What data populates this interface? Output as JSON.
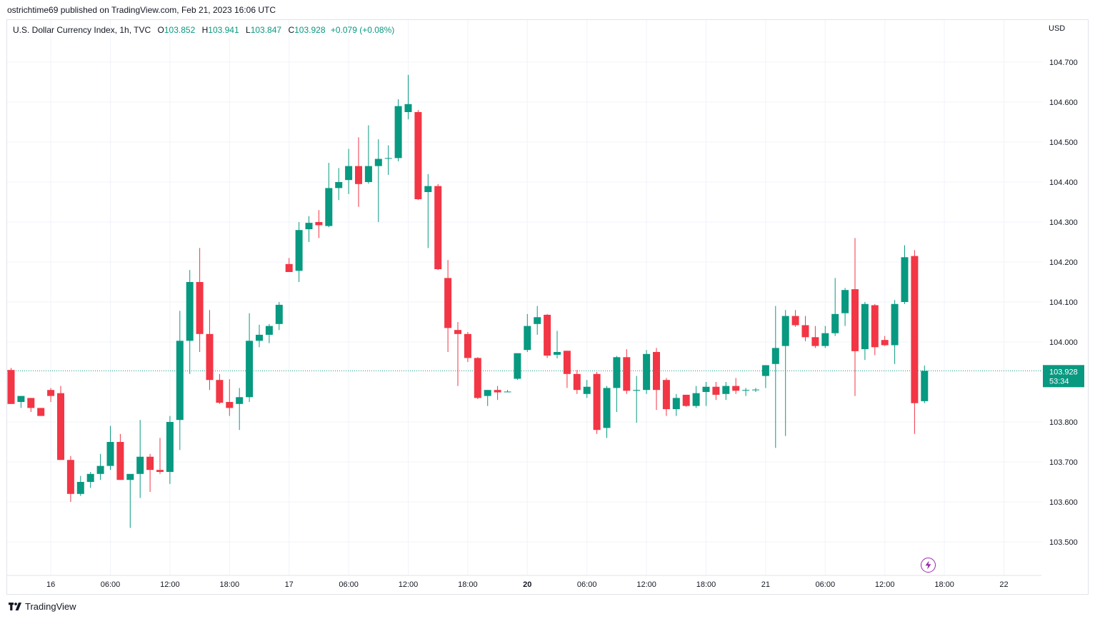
{
  "attribution": {
    "author": "ostrichtime69",
    "text": "published on TradingView.com, Feb 21, 2023 16:06 UTC"
  },
  "legend": {
    "symbol": "U.S. Dollar Currency Index, 1h, TVC",
    "open_label": "O",
    "open": "103.852",
    "high_label": "H",
    "high": "103.941",
    "low_label": "L",
    "low": "103.847",
    "close_label": "C",
    "close": "103.928",
    "change": "+0.079 (+0.08%)"
  },
  "currency": "USD",
  "footer": {
    "brand": "TradingView"
  },
  "colors": {
    "up": "#089981",
    "down": "#f23645",
    "grid": "#f0f3fa",
    "price_line": "#089981",
    "marker": "#9c27b0"
  },
  "icons": {
    "brand": "tradingview-logo-icon",
    "marker": "lightning-icon"
  },
  "chart_data": {
    "type": "candlestick",
    "title": "U.S. Dollar Currency Index, 1h, TVC",
    "ylabel": "USD",
    "ylim": [
      103.43,
      104.79
    ],
    "y_ticks": [
      "104.700",
      "104.600",
      "104.500",
      "104.400",
      "104.300",
      "104.200",
      "104.100",
      "104.000",
      "103.800",
      "103.700",
      "103.600",
      "103.500"
    ],
    "x_ticks": [
      {
        "label": "16",
        "index": 4,
        "bold": false
      },
      {
        "label": "06:00",
        "index": 10,
        "bold": false
      },
      {
        "label": "12:00",
        "index": 16,
        "bold": false
      },
      {
        "label": "18:00",
        "index": 22,
        "bold": false
      },
      {
        "label": "17",
        "index": 28,
        "bold": false
      },
      {
        "label": "06:00",
        "index": 34,
        "bold": false
      },
      {
        "label": "12:00",
        "index": 40,
        "bold": false
      },
      {
        "label": "18:00",
        "index": 46,
        "bold": false
      },
      {
        "label": "20",
        "index": 52,
        "bold": true
      },
      {
        "label": "06:00",
        "index": 58,
        "bold": false
      },
      {
        "label": "12:00",
        "index": 64,
        "bold": false
      },
      {
        "label": "18:00",
        "index": 70,
        "bold": false
      },
      {
        "label": "21",
        "index": 76,
        "bold": false
      },
      {
        "label": "06:00",
        "index": 82,
        "bold": false
      },
      {
        "label": "12:00",
        "index": 88,
        "bold": false
      },
      {
        "label": "18:00",
        "index": 94,
        "bold": false
      },
      {
        "label": "22",
        "index": 100,
        "bold": false
      }
    ],
    "last_price": {
      "value": 103.928,
      "label": "103.928",
      "countdown": "53:34"
    },
    "candles": [
      [
        103.93,
        103.935,
        103.845,
        103.845
      ],
      [
        103.85,
        103.865,
        103.835,
        103.865
      ],
      [
        103.86,
        103.86,
        103.825,
        103.835
      ],
      [
        103.835,
        103.835,
        103.815,
        103.815
      ],
      [
        103.88,
        103.885,
        103.85,
        103.865
      ],
      [
        103.872,
        103.89,
        103.705,
        103.705
      ],
      [
        103.705,
        103.715,
        103.6,
        103.62
      ],
      [
        103.62,
        103.665,
        103.615,
        103.65
      ],
      [
        103.65,
        103.675,
        103.635,
        103.67
      ],
      [
        103.67,
        103.72,
        103.655,
        103.69
      ],
      [
        103.69,
        103.79,
        103.68,
        103.75
      ],
      [
        103.75,
        103.77,
        103.655,
        103.655
      ],
      [
        103.655,
        103.665,
        103.535,
        103.67
      ],
      [
        103.67,
        103.805,
        103.61,
        103.713
      ],
      [
        103.713,
        103.72,
        103.625,
        103.68
      ],
      [
        103.68,
        103.76,
        103.67,
        103.675
      ],
      [
        103.675,
        103.815,
        103.645,
        103.8
      ],
      [
        103.805,
        104.078,
        103.73,
        104.003
      ],
      [
        104.003,
        104.18,
        103.92,
        104.15
      ],
      [
        104.15,
        104.235,
        103.975,
        104.02
      ],
      [
        104.02,
        104.08,
        103.88,
        103.905
      ],
      [
        103.905,
        103.92,
        103.845,
        103.848
      ],
      [
        103.85,
        103.907,
        103.815,
        103.835
      ],
      [
        103.845,
        103.885,
        103.78,
        103.862
      ],
      [
        103.862,
        104.072,
        103.85,
        104.003
      ],
      [
        104.003,
        104.043,
        103.987,
        104.018
      ],
      [
        104.018,
        104.045,
        103.997,
        104.04
      ],
      [
        104.045,
        104.1,
        104.03,
        104.093
      ],
      [
        104.195,
        104.21,
        104.175,
        104.175
      ],
      [
        104.178,
        104.3,
        104.15,
        104.28
      ],
      [
        104.282,
        104.315,
        104.25,
        104.298
      ],
      [
        104.3,
        104.33,
        104.26,
        104.292
      ],
      [
        104.29,
        104.448,
        104.287,
        104.385
      ],
      [
        104.385,
        104.435,
        104.355,
        104.4
      ],
      [
        104.405,
        104.483,
        104.37,
        104.44
      ],
      [
        104.44,
        104.512,
        104.338,
        104.395
      ],
      [
        104.4,
        104.542,
        104.396,
        104.44
      ],
      [
        104.44,
        104.507,
        104.3,
        104.458
      ],
      [
        104.46,
        104.492,
        104.418,
        104.46
      ],
      [
        104.46,
        104.607,
        104.452,
        104.59
      ],
      [
        104.575,
        104.668,
        104.557,
        104.595
      ],
      [
        104.575,
        104.58,
        104.355,
        104.357
      ],
      [
        104.375,
        104.42,
        104.235,
        104.39
      ],
      [
        104.39,
        104.395,
        104.18,
        104.182
      ],
      [
        104.16,
        104.205,
        103.975,
        104.035
      ],
      [
        104.03,
        104.05,
        103.89,
        104.02
      ],
      [
        104.02,
        104.025,
        103.95,
        103.96
      ],
      [
        103.96,
        103.962,
        103.857,
        103.86
      ],
      [
        103.865,
        103.88,
        103.84,
        103.88
      ],
      [
        103.88,
        103.89,
        103.855,
        103.874
      ],
      [
        103.876,
        103.88,
        103.875,
        103.876
      ],
      [
        103.908,
        103.968,
        103.905,
        103.972
      ],
      [
        103.98,
        104.07,
        103.975,
        104.04
      ],
      [
        104.045,
        104.09,
        104.018,
        104.062
      ],
      [
        104.068,
        104.07,
        103.96,
        103.966
      ],
      [
        103.968,
        104.028,
        103.959,
        103.975
      ],
      [
        103.978,
        103.978,
        103.885,
        103.92
      ],
      [
        103.92,
        103.93,
        103.87,
        103.88
      ],
      [
        103.87,
        103.905,
        103.86,
        103.888
      ],
      [
        103.92,
        103.925,
        103.77,
        103.78
      ],
      [
        103.785,
        103.89,
        103.76,
        103.885
      ],
      [
        103.885,
        103.965,
        103.825,
        103.962
      ],
      [
        103.962,
        103.982,
        103.87,
        103.878
      ],
      [
        103.878,
        103.915,
        103.798,
        103.88
      ],
      [
        103.88,
        103.98,
        103.87,
        103.97
      ],
      [
        103.975,
        103.985,
        103.83,
        103.88
      ],
      [
        103.905,
        103.91,
        103.815,
        103.832
      ],
      [
        103.832,
        103.87,
        103.815,
        103.86
      ],
      [
        103.868,
        103.868,
        103.838,
        103.84
      ],
      [
        103.84,
        103.89,
        103.835,
        103.872
      ],
      [
        103.875,
        103.9,
        103.84,
        103.888
      ],
      [
        103.888,
        103.9,
        103.855,
        103.868
      ],
      [
        103.87,
        103.9,
        103.855,
        103.89
      ],
      [
        103.89,
        103.91,
        103.87,
        103.878
      ],
      [
        103.88,
        103.885,
        103.865,
        103.88
      ],
      [
        103.88,
        103.885,
        103.875,
        103.881
      ],
      [
        103.915,
        103.94,
        103.885,
        103.942
      ],
      [
        103.945,
        104.09,
        103.735,
        103.985
      ],
      [
        103.99,
        104.08,
        103.765,
        104.065
      ],
      [
        104.065,
        104.08,
        104.038,
        104.042
      ],
      [
        104.042,
        104.065,
        104.002,
        104.012
      ],
      [
        104.012,
        104.04,
        103.985,
        103.99
      ],
      [
        103.99,
        104.04,
        103.985,
        104.022
      ],
      [
        104.022,
        104.16,
        104.015,
        104.07
      ],
      [
        104.072,
        104.135,
        104.04,
        104.13
      ],
      [
        104.132,
        104.26,
        103.865,
        103.977
      ],
      [
        103.982,
        104.1,
        103.955,
        104.095
      ],
      [
        104.092,
        104.095,
        103.967,
        103.987
      ],
      [
        104.005,
        104.015,
        103.99,
        103.992
      ],
      [
        103.992,
        104.105,
        103.945,
        104.095
      ],
      [
        104.1,
        104.242,
        104.095,
        104.212
      ],
      [
        104.215,
        104.23,
        103.77,
        103.847
      ],
      [
        103.852,
        103.941,
        103.847,
        103.928
      ]
    ]
  }
}
